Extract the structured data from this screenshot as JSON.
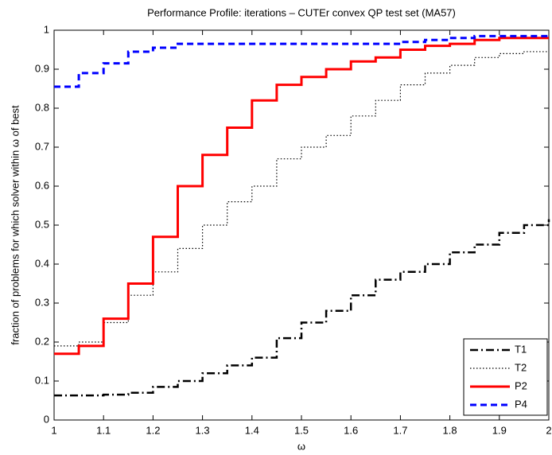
{
  "chart_data": {
    "type": "line",
    "title": "Performance Profile: iterations – CUTEr convex QP test set (MA57)",
    "x_label": "ω",
    "y_label": "fraction of problems for which solver within ω of best",
    "x": [
      1.0,
      1.05,
      1.1,
      1.15,
      1.2,
      1.25,
      1.3,
      1.35,
      1.4,
      1.45,
      1.5,
      1.55,
      1.6,
      1.65,
      1.7,
      1.75,
      1.8,
      1.85,
      1.9,
      1.95,
      2.0
    ],
    "series": [
      {
        "name": "T1",
        "color": "#000000",
        "style": "dashdot",
        "values": [
          0.063,
          0.063,
          0.065,
          0.07,
          0.085,
          0.1,
          0.12,
          0.14,
          0.16,
          0.21,
          0.25,
          0.28,
          0.32,
          0.36,
          0.38,
          0.4,
          0.43,
          0.45,
          0.48,
          0.5,
          0.515
        ]
      },
      {
        "name": "T2",
        "color": "#000000",
        "style": "dotted",
        "values": [
          0.19,
          0.2,
          0.25,
          0.32,
          0.38,
          0.44,
          0.5,
          0.56,
          0.6,
          0.67,
          0.7,
          0.73,
          0.78,
          0.82,
          0.86,
          0.89,
          0.91,
          0.93,
          0.94,
          0.945,
          0.945
        ]
      },
      {
        "name": "P2",
        "color": "#ff0000",
        "style": "solid",
        "values": [
          0.17,
          0.19,
          0.26,
          0.35,
          0.47,
          0.6,
          0.68,
          0.75,
          0.82,
          0.86,
          0.88,
          0.9,
          0.92,
          0.93,
          0.95,
          0.96,
          0.965,
          0.975,
          0.98,
          0.98,
          0.98
        ]
      },
      {
        "name": "P4",
        "color": "#0000ff",
        "style": "dashed",
        "values": [
          0.855,
          0.89,
          0.915,
          0.945,
          0.955,
          0.965,
          0.965,
          0.965,
          0.965,
          0.965,
          0.965,
          0.965,
          0.965,
          0.965,
          0.97,
          0.975,
          0.98,
          0.985,
          0.985,
          0.985,
          0.985
        ]
      }
    ],
    "xlim": [
      1,
      2
    ],
    "xticks": [
      1,
      1.1,
      1.2,
      1.3,
      1.4,
      1.5,
      1.6,
      1.7,
      1.8,
      1.9,
      2
    ],
    "ylim": [
      0,
      1
    ],
    "yticks": [
      0,
      0.1,
      0.2,
      0.3,
      0.4,
      0.5,
      0.6,
      0.7,
      0.8,
      0.9,
      1
    ],
    "legend": "lower right",
    "grid": false
  }
}
